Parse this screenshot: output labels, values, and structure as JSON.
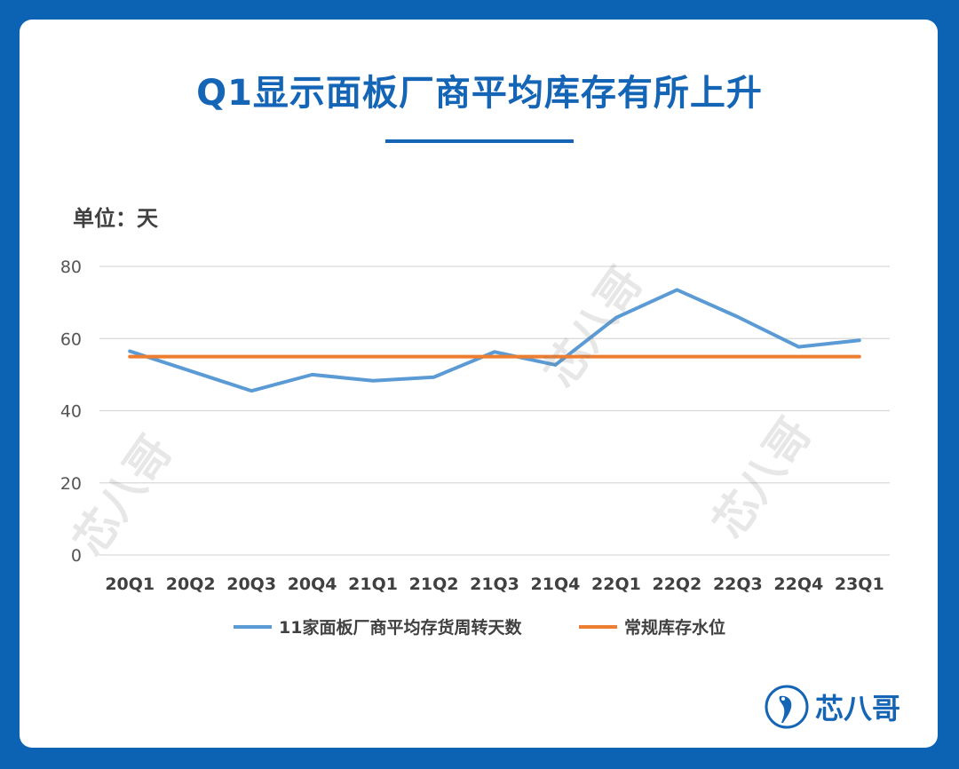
{
  "title": "Q1显示面板厂商平均库存有所上升",
  "unit_label": "单位：天",
  "logo_text": "芯八哥",
  "watermark_text": "芯八哥",
  "colors": {
    "background": "#0d63b3",
    "accent": "#1565b6",
    "series1": "#5b9bd5",
    "series2": "#ed7d31"
  },
  "chart_data": {
    "type": "line",
    "title": "Q1显示面板厂商平均库存有所上升",
    "ylabel": "单位：天",
    "xlabel": "",
    "categories": [
      "20Q1",
      "20Q2",
      "20Q3",
      "20Q4",
      "21Q1",
      "21Q2",
      "21Q3",
      "21Q4",
      "22Q1",
      "22Q2",
      "22Q3",
      "22Q4",
      "23Q1"
    ],
    "ylim": [
      0,
      80
    ],
    "yticks": [
      0,
      20,
      40,
      60,
      80
    ],
    "grid": true,
    "legend_position": "bottom",
    "series": [
      {
        "name": "11家面板厂商平均存货周转天数",
        "values": [
          56.5,
          51,
          45.5,
          50,
          48.3,
          49.3,
          56.3,
          52.7,
          65.8,
          73.5,
          66,
          57.7,
          59.5
        ]
      },
      {
        "name": "常规库存水位",
        "values": [
          55,
          55,
          55,
          55,
          55,
          55,
          55,
          55,
          55,
          55,
          55,
          55,
          55
        ]
      }
    ]
  }
}
